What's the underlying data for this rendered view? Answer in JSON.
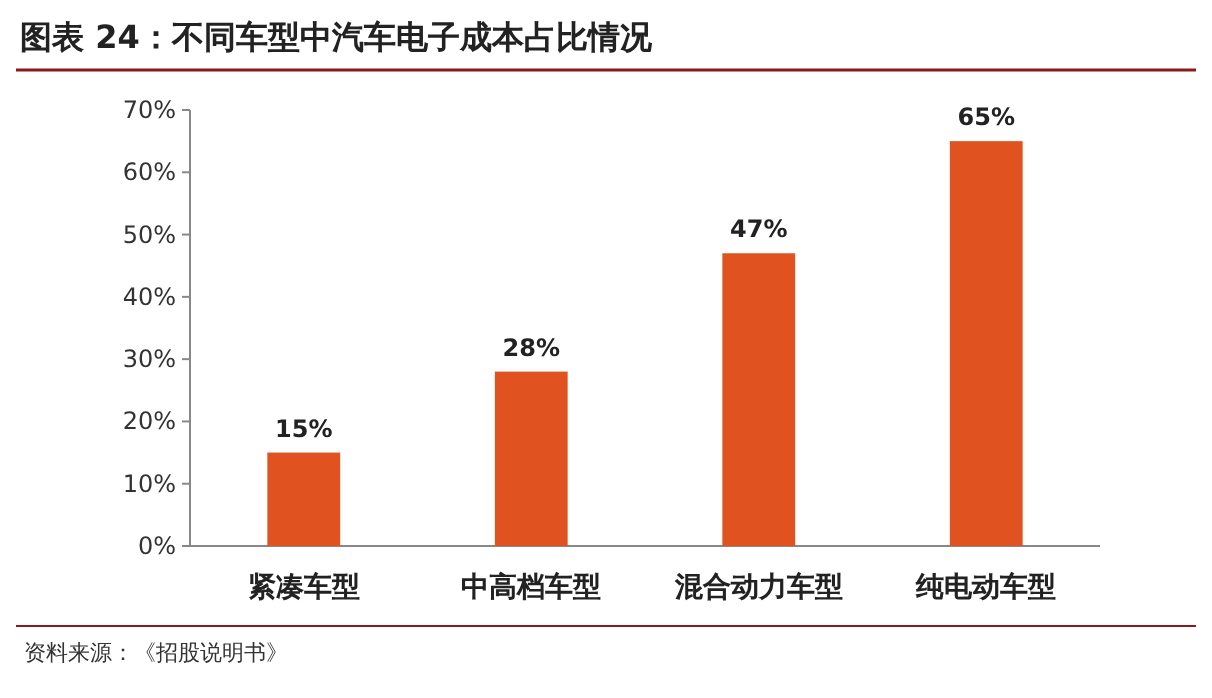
{
  "chart_data": {
    "type": "bar",
    "title": "图表 24：不同车型中汽车电子成本占比情况",
    "categories": [
      "紧凑车型",
      "中高档车型",
      "混合动力车型",
      "纯电动车型"
    ],
    "values": [
      15,
      28,
      47,
      65
    ],
    "value_labels": [
      "15%",
      "28%",
      "47%",
      "65%"
    ],
    "color": "#e0521f",
    "ylim": [
      0,
      70
    ],
    "yticks": [
      {
        "value": 0,
        "label": "0%"
      },
      {
        "value": 10,
        "label": "10%"
      },
      {
        "value": 20,
        "label": "20%"
      },
      {
        "value": 30,
        "label": "30%"
      },
      {
        "value": 40,
        "label": "40%"
      },
      {
        "value": 50,
        "label": "50%"
      },
      {
        "value": 60,
        "label": "60%"
      },
      {
        "value": 70,
        "label": "70%"
      }
    ],
    "annotations": [
      "资料来源：《招股说明书》"
    ]
  }
}
